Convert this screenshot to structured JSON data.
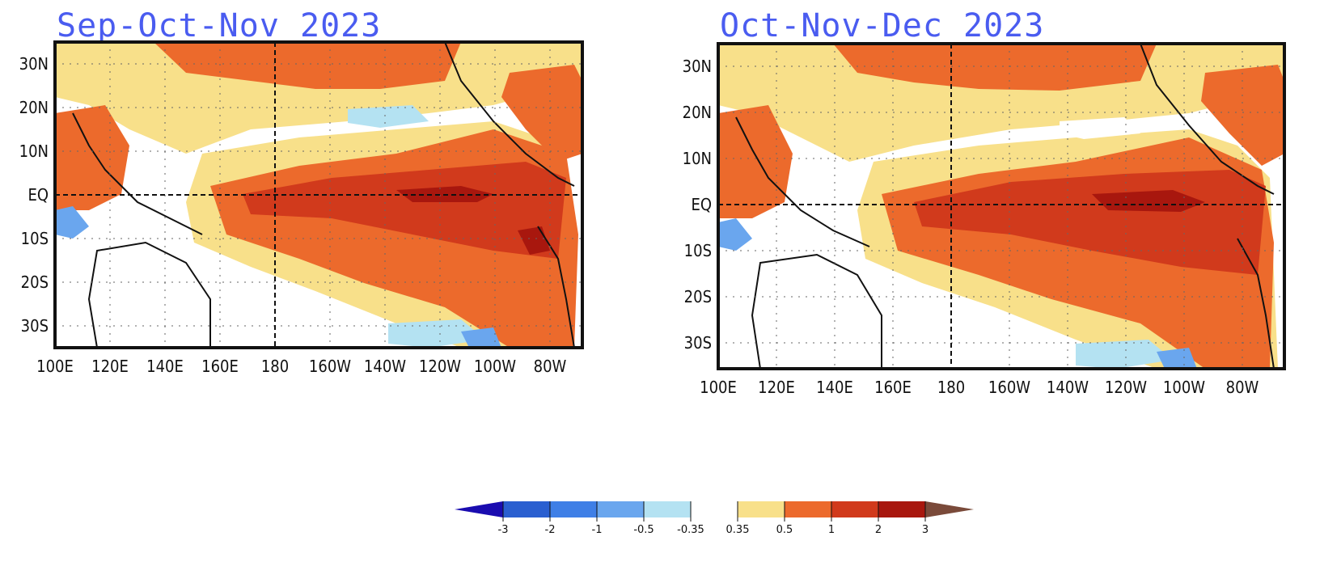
{
  "panels": [
    {
      "title": "Sep-Oct-Nov 2023",
      "lon_ticks": [
        "100E",
        "120E",
        "140E",
        "160E",
        "180",
        "160W",
        "140W",
        "120W",
        "100W",
        "80W"
      ],
      "lat_ticks": [
        "30N",
        "20N",
        "10N",
        "EQ",
        "10S",
        "20S",
        "30S"
      ]
    },
    {
      "title": "Oct-Nov-Dec 2023",
      "lon_ticks": [
        "100E",
        "120E",
        "140E",
        "160E",
        "180",
        "160W",
        "140W",
        "120W",
        "100W",
        "80W"
      ],
      "lat_ticks": [
        "30N",
        "20N",
        "10N",
        "EQ",
        "10S",
        "20S",
        "30S"
      ]
    }
  ],
  "colorbar": {
    "labels": [
      "-3",
      "-2",
      "-1",
      "-0.5",
      "-0.35",
      "0.35",
      "0.5",
      "1",
      "2",
      "3"
    ],
    "colors": [
      "#1a0cb0",
      "#2a5fd0",
      "#3f7fe6",
      "#6aa6ee",
      "#b4e2f2",
      "#ffffff",
      "#f8e08a",
      "#ec6a2c",
      "#d13a1c",
      "#a8170e",
      "#7a4a3a"
    ]
  }
}
